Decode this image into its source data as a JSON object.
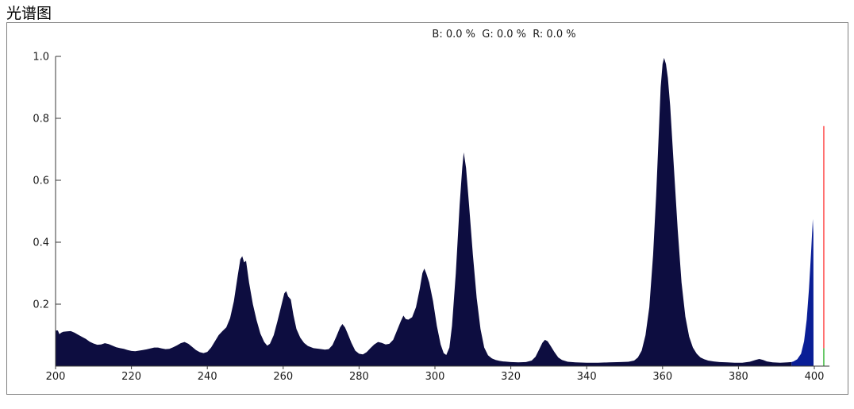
{
  "title": "光谱图",
  "chart_data": {
    "type": "area",
    "title": "光谱图",
    "overlay_label": "B: 0.0 %  G: 0.0 %  R: 0.0 %",
    "xlabel": "",
    "ylabel": "",
    "xlim": [
      200,
      404
    ],
    "ylim": [
      0,
      1.0
    ],
    "grid": false,
    "x_ticks": [
      "200",
      "220",
      "240",
      "260",
      "280",
      "300",
      "320",
      "340",
      "360",
      "380",
      "400"
    ],
    "x_tick_values": [
      200,
      220,
      240,
      260,
      280,
      300,
      320,
      340,
      360,
      380,
      400
    ],
    "y_ticks": [
      "0.2",
      "0.4",
      "0.6",
      "0.8",
      "1.0"
    ],
    "y_tick_values": [
      0.2,
      0.4,
      0.6,
      0.8,
      1.0
    ],
    "axis_color": "#3a3a3a",
    "series": [
      {
        "name": "spectrum-uv",
        "color": "#0d0d40",
        "points": [
          [
            200,
            0.115
          ],
          [
            200.6,
            0.115
          ],
          [
            201,
            0.103
          ],
          [
            201.5,
            0.108
          ],
          [
            202,
            0.111
          ],
          [
            203,
            0.112
          ],
          [
            204,
            0.113
          ],
          [
            205,
            0.108
          ],
          [
            206,
            0.101
          ],
          [
            207,
            0.094
          ],
          [
            208,
            0.088
          ],
          [
            209,
            0.079
          ],
          [
            210,
            0.073
          ],
          [
            211,
            0.069
          ],
          [
            212,
            0.07
          ],
          [
            213,
            0.074
          ],
          [
            214,
            0.071
          ],
          [
            215,
            0.066
          ],
          [
            216,
            0.061
          ],
          [
            217,
            0.058
          ],
          [
            218,
            0.056
          ],
          [
            219,
            0.052
          ],
          [
            220,
            0.049
          ],
          [
            221,
            0.048
          ],
          [
            222,
            0.05
          ],
          [
            223,
            0.052
          ],
          [
            224,
            0.054
          ],
          [
            225,
            0.057
          ],
          [
            226,
            0.06
          ],
          [
            227,
            0.06
          ],
          [
            228,
            0.057
          ],
          [
            229,
            0.055
          ],
          [
            230,
            0.056
          ],
          [
            231,
            0.061
          ],
          [
            232,
            0.067
          ],
          [
            233,
            0.074
          ],
          [
            234,
            0.078
          ],
          [
            235,
            0.072
          ],
          [
            236,
            0.062
          ],
          [
            237,
            0.052
          ],
          [
            238,
            0.045
          ],
          [
            239,
            0.042
          ],
          [
            240,
            0.046
          ],
          [
            241,
            0.06
          ],
          [
            242,
            0.08
          ],
          [
            243,
            0.1
          ],
          [
            244,
            0.113
          ],
          [
            245,
            0.125
          ],
          [
            246,
            0.155
          ],
          [
            247,
            0.21
          ],
          [
            248,
            0.29
          ],
          [
            248.7,
            0.345
          ],
          [
            249.2,
            0.355
          ],
          [
            249.7,
            0.335
          ],
          [
            250.2,
            0.34
          ],
          [
            251,
            0.27
          ],
          [
            252,
            0.2
          ],
          [
            253,
            0.148
          ],
          [
            254,
            0.105
          ],
          [
            255,
            0.078
          ],
          [
            255.8,
            0.066
          ],
          [
            256.5,
            0.072
          ],
          [
            257.5,
            0.1
          ],
          [
            258.5,
            0.145
          ],
          [
            259.5,
            0.195
          ],
          [
            260.3,
            0.235
          ],
          [
            260.8,
            0.242
          ],
          [
            261.3,
            0.225
          ],
          [
            262,
            0.215
          ],
          [
            262.7,
            0.165
          ],
          [
            263.5,
            0.12
          ],
          [
            264.5,
            0.092
          ],
          [
            265.5,
            0.075
          ],
          [
            266.5,
            0.065
          ],
          [
            268,
            0.058
          ],
          [
            269.5,
            0.056
          ],
          [
            271,
            0.053
          ],
          [
            272,
            0.055
          ],
          [
            273,
            0.068
          ],
          [
            274,
            0.095
          ],
          [
            275,
            0.125
          ],
          [
            275.6,
            0.136
          ],
          [
            276.3,
            0.125
          ],
          [
            277,
            0.105
          ],
          [
            278,
            0.075
          ],
          [
            279,
            0.05
          ],
          [
            280,
            0.04
          ],
          [
            281,
            0.038
          ],
          [
            282,
            0.045
          ],
          [
            283,
            0.058
          ],
          [
            284,
            0.07
          ],
          [
            285,
            0.078
          ],
          [
            286,
            0.075
          ],
          [
            287,
            0.07
          ],
          [
            288,
            0.072
          ],
          [
            289,
            0.085
          ],
          [
            290,
            0.115
          ],
          [
            291,
            0.145
          ],
          [
            291.7,
            0.163
          ],
          [
            292.3,
            0.152
          ],
          [
            293,
            0.15
          ],
          [
            294,
            0.158
          ],
          [
            295,
            0.19
          ],
          [
            296,
            0.25
          ],
          [
            296.7,
            0.3
          ],
          [
            297.2,
            0.315
          ],
          [
            297.7,
            0.3
          ],
          [
            298.5,
            0.27
          ],
          [
            299.5,
            0.21
          ],
          [
            300.5,
            0.13
          ],
          [
            301.5,
            0.07
          ],
          [
            302.3,
            0.042
          ],
          [
            303,
            0.036
          ],
          [
            303.8,
            0.06
          ],
          [
            304.5,
            0.13
          ],
          [
            305.5,
            0.3
          ],
          [
            306.5,
            0.52
          ],
          [
            307.2,
            0.64
          ],
          [
            307.6,
            0.69
          ],
          [
            308.2,
            0.64
          ],
          [
            309,
            0.52
          ],
          [
            310,
            0.36
          ],
          [
            311,
            0.22
          ],
          [
            312,
            0.12
          ],
          [
            313,
            0.06
          ],
          [
            314,
            0.035
          ],
          [
            315,
            0.025
          ],
          [
            316,
            0.02
          ],
          [
            317,
            0.017
          ],
          [
            318,
            0.015
          ],
          [
            320,
            0.013
          ],
          [
            322,
            0.012
          ],
          [
            324,
            0.013
          ],
          [
            325.5,
            0.018
          ],
          [
            326.5,
            0.03
          ],
          [
            327.5,
            0.055
          ],
          [
            328.3,
            0.075
          ],
          [
            329,
            0.085
          ],
          [
            329.7,
            0.08
          ],
          [
            330.5,
            0.065
          ],
          [
            331.5,
            0.045
          ],
          [
            332.5,
            0.028
          ],
          [
            333.5,
            0.02
          ],
          [
            335,
            0.014
          ],
          [
            337,
            0.012
          ],
          [
            340,
            0.011
          ],
          [
            343,
            0.011
          ],
          [
            346,
            0.012
          ],
          [
            349,
            0.013
          ],
          [
            351,
            0.014
          ],
          [
            352.5,
            0.018
          ],
          [
            353.5,
            0.028
          ],
          [
            354.5,
            0.05
          ],
          [
            355.5,
            0.1
          ],
          [
            356.5,
            0.19
          ],
          [
            357.5,
            0.36
          ],
          [
            358.3,
            0.55
          ],
          [
            359,
            0.75
          ],
          [
            359.5,
            0.9
          ],
          [
            360,
            0.975
          ],
          [
            360.4,
            0.995
          ],
          [
            360.9,
            0.975
          ],
          [
            361.4,
            0.93
          ],
          [
            362,
            0.84
          ],
          [
            363,
            0.64
          ],
          [
            364,
            0.44
          ],
          [
            365,
            0.27
          ],
          [
            366,
            0.16
          ],
          [
            367,
            0.095
          ],
          [
            368,
            0.06
          ],
          [
            369,
            0.04
          ],
          [
            370,
            0.028
          ],
          [
            371,
            0.022
          ],
          [
            372,
            0.018
          ],
          [
            373.5,
            0.015
          ],
          [
            375,
            0.013
          ],
          [
            377,
            0.012
          ],
          [
            379,
            0.011
          ],
          [
            381,
            0.011
          ],
          [
            383,
            0.014
          ],
          [
            384.5,
            0.02
          ],
          [
            385.5,
            0.023
          ],
          [
            386.5,
            0.02
          ],
          [
            387.5,
            0.015
          ],
          [
            389,
            0.012
          ],
          [
            391,
            0.011
          ],
          [
            393,
            0.012
          ],
          [
            394,
            0.013
          ]
        ]
      },
      {
        "name": "spectrum-visible",
        "color": "#0a1e96",
        "points": [
          [
            394,
            0.013
          ],
          [
            394.5,
            0.015
          ],
          [
            395.5,
            0.022
          ],
          [
            396.5,
            0.04
          ],
          [
            397.3,
            0.08
          ],
          [
            398,
            0.15
          ],
          [
            398.6,
            0.25
          ],
          [
            399.2,
            0.38
          ],
          [
            399.6,
            0.475
          ],
          [
            399.75,
            0.43
          ],
          [
            399.8,
            0.0
          ]
        ]
      }
    ],
    "markers": [
      {
        "name": "cursor-line",
        "x": 402.5,
        "segments": [
          {
            "from": 0.775,
            "to": 0.058,
            "color": "#ff4040"
          },
          {
            "from": 0.058,
            "to": 0.0,
            "color": "#33b333"
          }
        ]
      }
    ]
  }
}
